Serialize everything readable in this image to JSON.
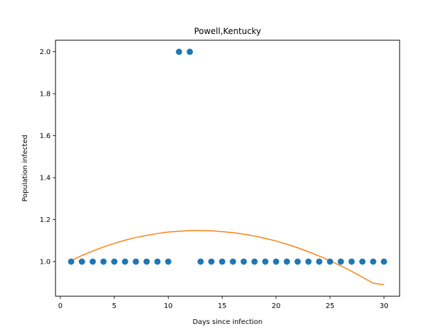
{
  "chart_data": {
    "type": "scatter",
    "title": "Powell,Kentucky",
    "xlabel": "Days since infection",
    "ylabel": "Population infected",
    "xlim": [
      -0.45,
      31.45
    ],
    "ylim": [
      0.835,
      2.055
    ],
    "xticks": [
      0,
      5,
      10,
      15,
      20,
      25,
      30
    ],
    "yticks": [
      1.0,
      1.2,
      1.4,
      1.6,
      1.8,
      2.0
    ],
    "ytick_labels": [
      "1.0",
      "1.2",
      "1.4",
      "1.6",
      "1.8",
      "2.0"
    ],
    "grid": false,
    "legend": "none",
    "series": [
      {
        "kind": "scatter",
        "color": "#1f77b4",
        "x": [
          1,
          2,
          3,
          4,
          5,
          6,
          7,
          8,
          9,
          10,
          11,
          12,
          13,
          14,
          15,
          16,
          17,
          18,
          19,
          20,
          21,
          22,
          23,
          24,
          25,
          26,
          27,
          28,
          29,
          30
        ],
        "y": [
          1,
          1,
          1,
          1,
          1,
          1,
          1,
          1,
          1,
          1,
          2,
          2,
          1,
          1,
          1,
          1,
          1,
          1,
          1,
          1,
          1,
          1,
          1,
          1,
          1,
          1,
          1,
          1,
          1,
          1
        ]
      },
      {
        "kind": "line",
        "color": "#ff7f0e",
        "x": [
          1,
          2,
          3,
          4,
          5,
          6,
          7,
          8,
          9,
          10,
          11,
          12,
          13,
          14,
          15,
          16,
          17,
          18,
          19,
          20,
          21,
          22,
          23,
          24,
          25,
          26,
          27,
          28,
          29,
          30
        ],
        "y": [
          1.005,
          1.029,
          1.05,
          1.07,
          1.087,
          1.102,
          1.115,
          1.125,
          1.134,
          1.141,
          1.145,
          1.148,
          1.148,
          1.147,
          1.143,
          1.138,
          1.131,
          1.122,
          1.111,
          1.098,
          1.083,
          1.066,
          1.047,
          1.026,
          1.004,
          0.98,
          0.954,
          0.926,
          0.897,
          0.89
        ]
      }
    ]
  }
}
